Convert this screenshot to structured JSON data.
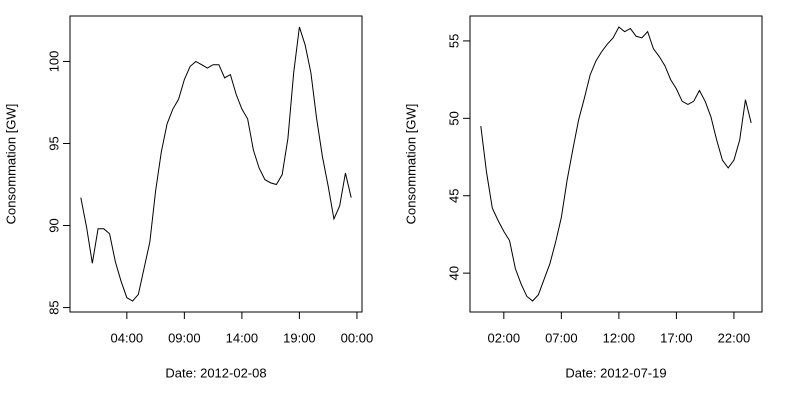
{
  "chart_data": [
    {
      "type": "line",
      "xlabel": "Date: 2012-02-08",
      "ylabel": "Consommation [GW]",
      "color": "#000000",
      "x": [
        0,
        0.5,
        1,
        1.5,
        2,
        2.5,
        3,
        3.5,
        4,
        4.5,
        5,
        5.5,
        6,
        6.5,
        7,
        7.5,
        8,
        8.5,
        9,
        9.5,
        10,
        10.5,
        11,
        11.5,
        12,
        12.5,
        13,
        13.5,
        14,
        14.5,
        15,
        15.5,
        16,
        16.5,
        17,
        17.5,
        18,
        18.5,
        19,
        19.5,
        20,
        20.5,
        21,
        21.5,
        22,
        22.5,
        23,
        23.5
      ],
      "values": [
        91.7,
        89.9,
        87.7,
        89.8,
        89.8,
        89.5,
        87.8,
        86.6,
        85.6,
        85.4,
        85.8,
        87.4,
        89,
        92.1,
        94.5,
        96.2,
        97.1,
        97.7,
        98.9,
        99.7,
        100,
        99.8,
        99.6,
        99.8,
        99.8,
        99,
        99.2,
        98,
        97.1,
        96.5,
        94.6,
        93.5,
        92.8,
        92.6,
        92.5,
        93.1,
        95.3,
        99.3,
        102.1,
        101,
        99.3,
        96.5,
        94.2,
        92.4,
        90.4,
        91.2,
        93.2,
        91.7
      ],
      "xlim": [
        -0.94,
        24.44
      ],
      "ylim": [
        84.73,
        102.77
      ],
      "xticks": [
        {
          "value": 4,
          "label": "04:00"
        },
        {
          "value": 9,
          "label": "09:00"
        },
        {
          "value": 14,
          "label": "14:00"
        },
        {
          "value": 19,
          "label": "19:00"
        },
        {
          "value": 24,
          "label": "00:00"
        }
      ],
      "yticks": [
        85,
        90,
        95,
        100
      ]
    },
    {
      "type": "line",
      "xlabel": "Date: 2012-07-19",
      "ylabel": "Consommation [GW]",
      "color": "#000000",
      "x": [
        0,
        0.5,
        1,
        1.5,
        2,
        2.5,
        3,
        3.5,
        4,
        4.5,
        5,
        5.5,
        6,
        6.5,
        7,
        7.5,
        8,
        8.5,
        9,
        9.5,
        10,
        10.5,
        11,
        11.5,
        12,
        12.5,
        13,
        13.5,
        14,
        14.5,
        15,
        15.5,
        16,
        16.5,
        17,
        17.5,
        18,
        18.5,
        19,
        19.5,
        20,
        20.5,
        21,
        21.5,
        22,
        22.5,
        23,
        23.5
      ],
      "values": [
        49.5,
        46.5,
        44.2,
        43.4,
        42.7,
        42.1,
        40.3,
        39.3,
        38.5,
        38.2,
        38.6,
        39.6,
        40.6,
        42,
        43.6,
        46,
        48,
        49.9,
        51.3,
        52.8,
        53.7,
        54.3,
        54.8,
        55.2,
        55.9,
        55.6,
        55.8,
        55.3,
        55.2,
        55.6,
        54.5,
        54,
        53.4,
        52.5,
        51.9,
        51.1,
        50.9,
        51.1,
        51.8,
        51.1,
        50.1,
        48.6,
        47.3,
        46.8,
        47.3,
        48.6,
        51.2,
        49.7
      ],
      "xlim": [
        -0.94,
        24.44
      ],
      "ylim": [
        37.49,
        56.61
      ],
      "xticks": [
        {
          "value": 2,
          "label": "02:00"
        },
        {
          "value": 7,
          "label": "07:00"
        },
        {
          "value": 12,
          "label": "12:00"
        },
        {
          "value": 17,
          "label": "17:00"
        },
        {
          "value": 22,
          "label": "22:00"
        }
      ],
      "yticks": [
        40,
        45,
        50,
        55
      ]
    }
  ]
}
